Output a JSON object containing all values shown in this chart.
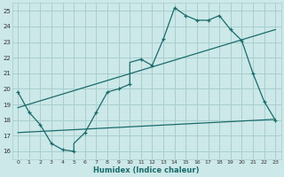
{
  "xlabel": "Humidex (Indice chaleur)",
  "bg_color": "#cce8e8",
  "grid_color": "#a8cece",
  "line_color": "#1a6b6b",
  "xlim": [
    -0.5,
    23.5
  ],
  "ylim": [
    15.5,
    25.5
  ],
  "yticks": [
    16,
    17,
    18,
    19,
    20,
    21,
    22,
    23,
    24,
    25
  ],
  "xticks": [
    0,
    1,
    2,
    3,
    4,
    5,
    6,
    7,
    8,
    9,
    10,
    11,
    12,
    13,
    14,
    15,
    16,
    17,
    18,
    19,
    20,
    21,
    22,
    23
  ],
  "main_x": [
    0,
    1,
    2,
    3,
    4,
    5,
    5,
    6,
    7,
    8,
    9,
    10,
    10,
    11,
    12,
    13,
    14,
    15,
    16,
    17,
    18,
    19,
    20,
    21,
    22,
    23
  ],
  "main_y": [
    19.8,
    18.5,
    17.7,
    16.5,
    16.1,
    16.0,
    16.5,
    17.2,
    18.5,
    19.8,
    20.0,
    20.3,
    21.7,
    21.9,
    21.5,
    23.2,
    25.2,
    24.7,
    24.4,
    24.4,
    24.7,
    23.8,
    23.1,
    21.0,
    19.2,
    18.0
  ],
  "upper_line_x": [
    0,
    23
  ],
  "upper_line_y": [
    18.8,
    23.8
  ],
  "lower_line_x": [
    0,
    23
  ],
  "lower_line_y": [
    17.2,
    18.05
  ],
  "marker_x": [
    0,
    1,
    2,
    3,
    4,
    5,
    6,
    7,
    8,
    9,
    10,
    11,
    12,
    13,
    14,
    15,
    16,
    17,
    18,
    19,
    20,
    21,
    22,
    23
  ],
  "marker_y": [
    19.8,
    18.5,
    17.7,
    16.5,
    16.1,
    16.0,
    17.2,
    18.5,
    19.8,
    20.0,
    20.3,
    21.9,
    21.5,
    23.2,
    25.2,
    24.7,
    24.4,
    24.4,
    24.7,
    23.8,
    23.1,
    21.0,
    19.2,
    18.0
  ]
}
